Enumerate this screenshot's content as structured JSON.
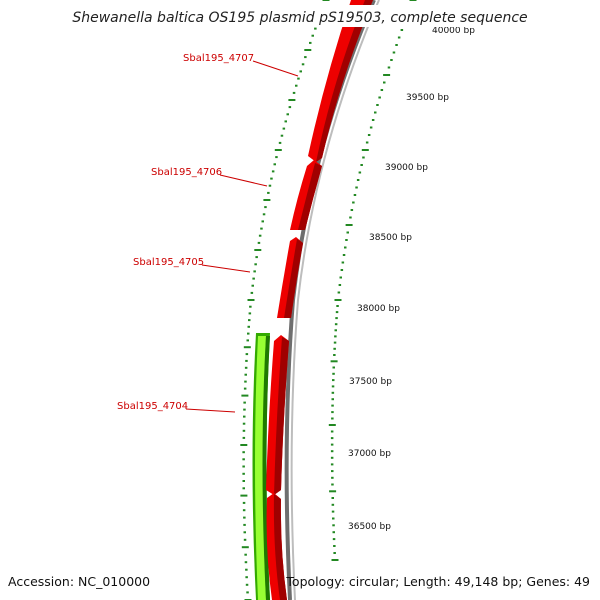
{
  "title": "Shewanella baltica OS195 plasmid pS19503, complete sequence",
  "accession": "Accession: NC_010000",
  "summary": "Topology: circular; Length: 49,148 bp; Genes: 49",
  "colors": {
    "cds_forward": "#ee0000",
    "cds_reverse": "#33aa00",
    "backbone": "#888888",
    "tick": "#228822",
    "label": "#cc0000"
  },
  "genes": [
    {
      "id": "Sbal195_4707",
      "label": "Sbal195_4707",
      "strand": "+"
    },
    {
      "id": "Sbal195_4706",
      "label": "Sbal195_4706",
      "strand": "+"
    },
    {
      "id": "Sbal195_4705",
      "label": "Sbal195_4705",
      "strand": "+"
    },
    {
      "id": "Sbal195_4704",
      "label": "Sbal195_4704",
      "strand": "+"
    },
    {
      "id": "reverse-gene",
      "label": "",
      "strand": "-"
    }
  ],
  "ruler": [
    {
      "label": "40000 bp"
    },
    {
      "label": "39500 bp"
    },
    {
      "label": "39000 bp"
    },
    {
      "label": "38500 bp"
    },
    {
      "label": "38000 bp"
    },
    {
      "label": "37500 bp"
    },
    {
      "label": "37000 bp"
    },
    {
      "label": "36500 bp"
    }
  ]
}
